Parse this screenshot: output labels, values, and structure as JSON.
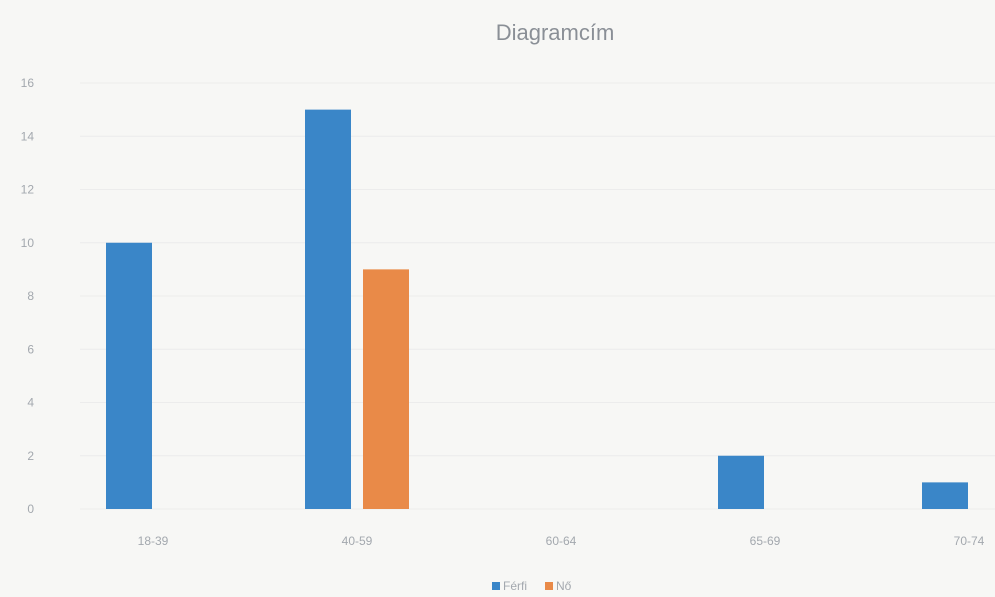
{
  "chart_data": {
    "type": "bar",
    "title": "Diagramcím",
    "xlabel": "",
    "ylabel": "",
    "categories": [
      "18-39",
      "40-59",
      "60-64",
      "65-69",
      "70-74"
    ],
    "series": [
      {
        "name": "Férfi",
        "values": [
          10,
          15,
          0,
          2,
          1
        ],
        "color": "#3a86c8"
      },
      {
        "name": "Nő",
        "values": [
          0,
          9,
          0,
          0,
          0
        ],
        "color": "#e98a48"
      }
    ],
    "ylim": [
      0,
      16
    ],
    "yticks": [
      0,
      2,
      4,
      6,
      8,
      10,
      12,
      14,
      16
    ],
    "grid": true,
    "legend": "bottom"
  }
}
